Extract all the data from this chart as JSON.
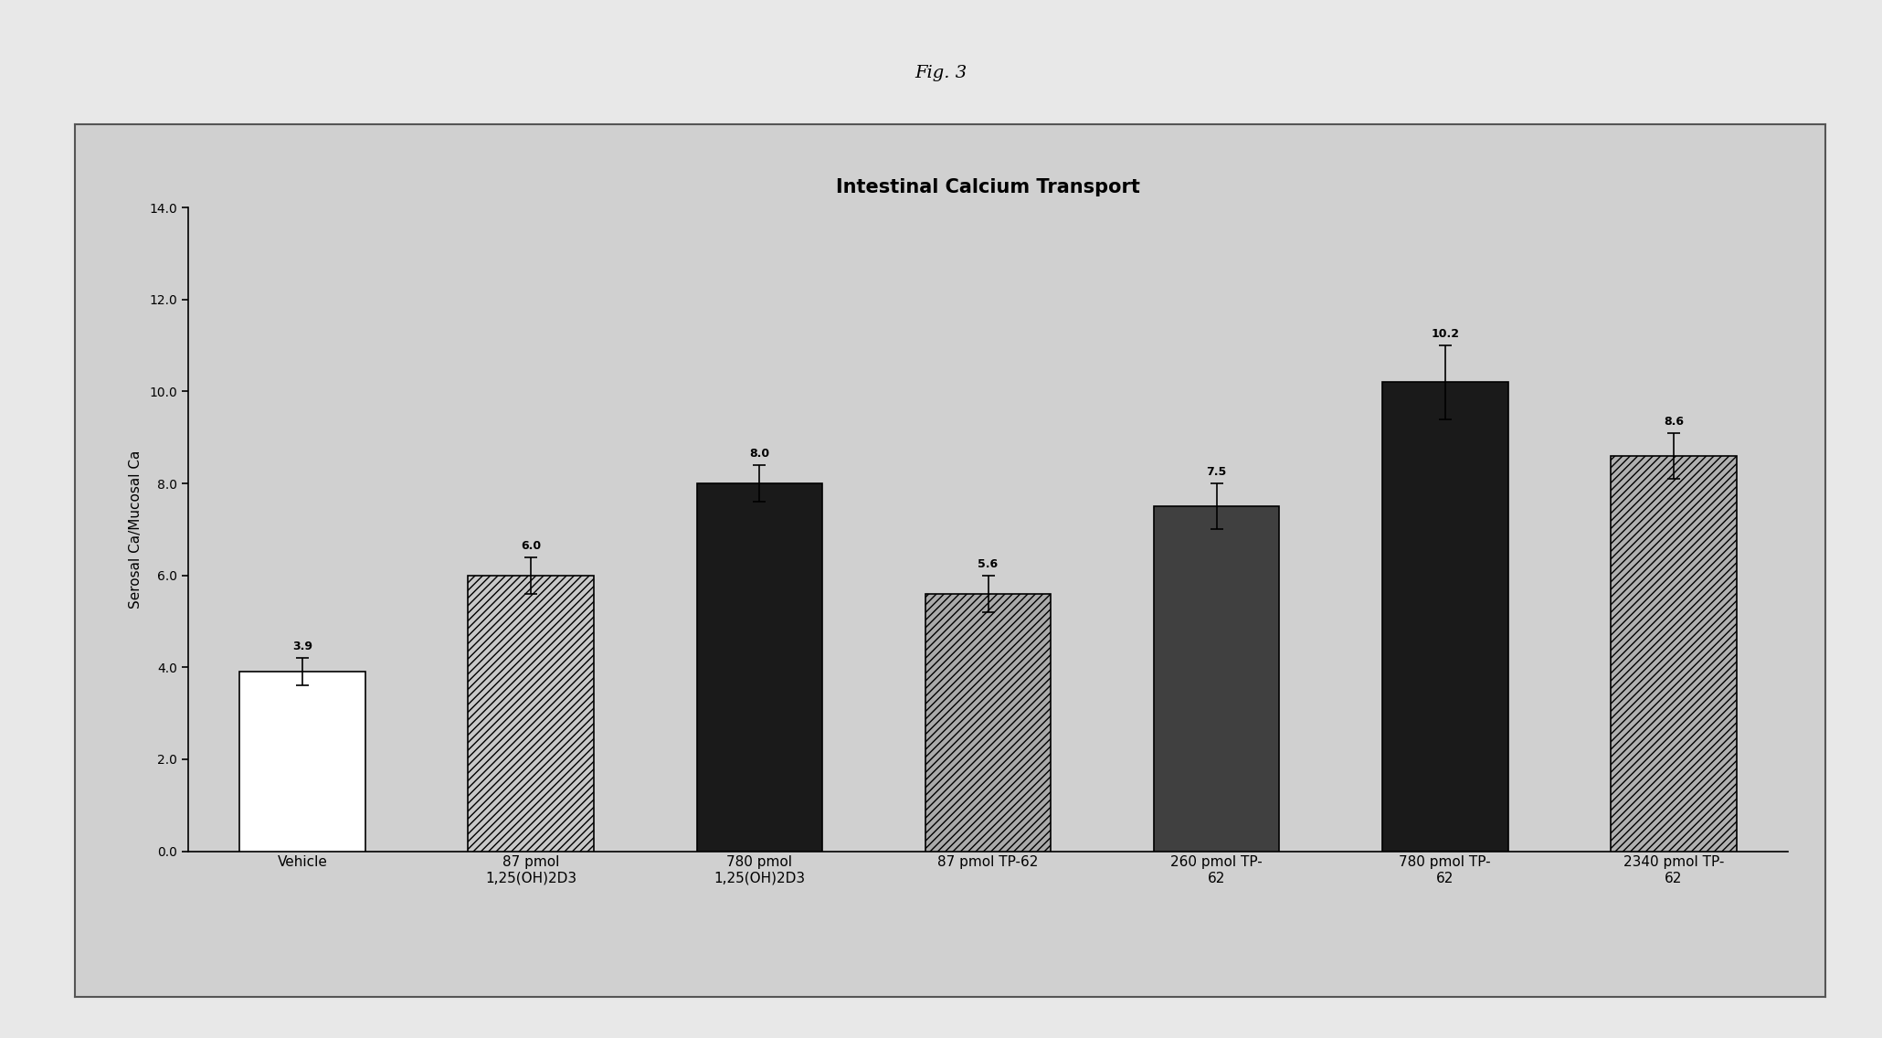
{
  "title": "Intestinal Calcium Transport",
  "fig_label": "Fig. 3",
  "ylabel": "Serosal Ca/Mucosal Ca",
  "ylim": [
    0,
    14.0
  ],
  "yticks": [
    0.0,
    2.0,
    4.0,
    6.0,
    8.0,
    10.0,
    12.0,
    14.0
  ],
  "categories": [
    "Vehicle",
    "87 pmol\n1,25(OH)2D3",
    "780 pmol\n1,25(OH)2D3",
    "87 pmol TP-62",
    "260 pmol TP-\n62",
    "780 pmol TP-\n62",
    "2340 pmol TP-\n62"
  ],
  "values": [
    3.9,
    6.0,
    8.0,
    5.6,
    7.5,
    10.2,
    8.6
  ],
  "errors": [
    0.3,
    0.4,
    0.4,
    0.4,
    0.5,
    0.8,
    0.5
  ],
  "value_labels": [
    "3.9",
    "6.0",
    "8.0",
    "5.6",
    "7.5",
    "10.2",
    "8.6"
  ],
  "bar_styles": [
    {
      "facecolor": "#ffffff",
      "edgecolor": "#000000",
      "hatch": ""
    },
    {
      "facecolor": "#c8c8c8",
      "edgecolor": "#000000",
      "hatch": "////"
    },
    {
      "facecolor": "#1a1a1a",
      "edgecolor": "#000000",
      "hatch": ""
    },
    {
      "facecolor": "#aaaaaa",
      "edgecolor": "#000000",
      "hatch": "////"
    },
    {
      "facecolor": "#404040",
      "edgecolor": "#000000",
      "hatch": ""
    },
    {
      "facecolor": "#1a1a1a",
      "edgecolor": "#000000",
      "hatch": ""
    },
    {
      "facecolor": "#b0b0b0",
      "edgecolor": "#000000",
      "hatch": "////"
    }
  ],
  "outer_bg": "#e8e8e8",
  "inner_bg": "#d0d0d0",
  "title_fontsize": 15,
  "label_fontsize": 11,
  "tick_fontsize": 10,
  "value_label_fontsize": 9,
  "fig_label_fontsize": 14
}
